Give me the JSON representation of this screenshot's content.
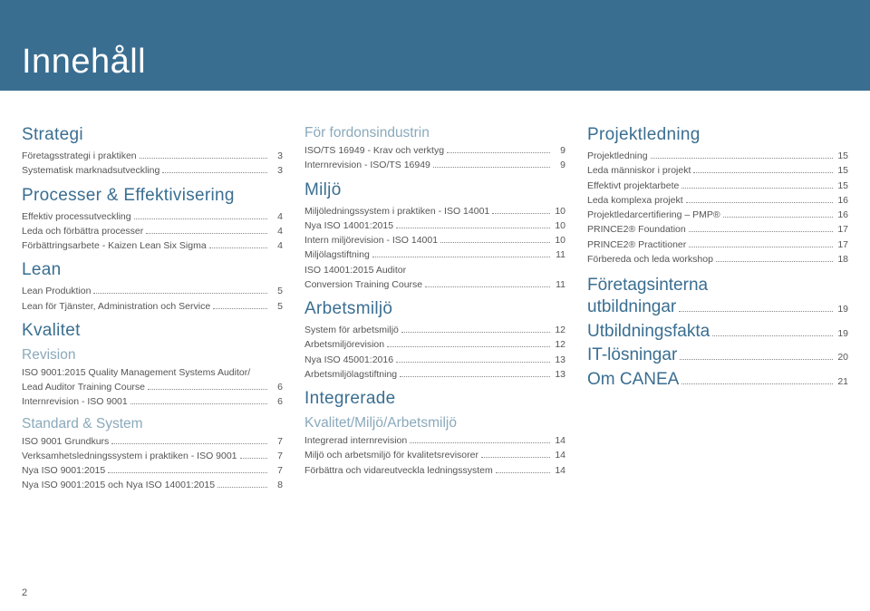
{
  "colors": {
    "band": "#3a6e91",
    "heading": "#3a6e91",
    "subheading": "#8aa9bb",
    "text": "#555555",
    "dots": "#888888",
    "background": "#ffffff"
  },
  "typography": {
    "title_fontsize": 38,
    "section_fontsize": 19,
    "sub_fontsize": 15.5,
    "body_fontsize": 10.5,
    "font_family": "Arial"
  },
  "page_title": "Innehåll",
  "page_number": "2",
  "columns": [
    {
      "blocks": [
        {
          "type": "section",
          "text": "Strategi",
          "first": true
        },
        {
          "type": "item",
          "label": "Företagsstrategi i praktiken",
          "page": "3"
        },
        {
          "type": "item",
          "label": "Systematisk marknadsutveckling",
          "page": "3"
        },
        {
          "type": "section",
          "text": "Processer & Effektivisering"
        },
        {
          "type": "item",
          "label": "Effektiv processutveckling",
          "page": "4"
        },
        {
          "type": "item",
          "label": "Leda och förbättra processer",
          "page": "4"
        },
        {
          "type": "item",
          "label": "Förbättringsarbete - Kaizen Lean Six Sigma",
          "page": "4"
        },
        {
          "type": "section",
          "text": "Lean"
        },
        {
          "type": "item",
          "label": "Lean Produktion",
          "page": "5"
        },
        {
          "type": "item",
          "label": "Lean för Tjänster, Administration och Service",
          "page": "5"
        },
        {
          "type": "section",
          "text": "Kvalitet"
        },
        {
          "type": "sub",
          "text": "Revision"
        },
        {
          "type": "textline",
          "label": "ISO 9001:2015 Quality Management Systems Auditor/"
        },
        {
          "type": "item",
          "label": "Lead Auditor Training Course",
          "page": "6"
        },
        {
          "type": "item",
          "label": "Internrevision - ISO 9001",
          "page": "6"
        },
        {
          "type": "sub",
          "text": "Standard & System"
        },
        {
          "type": "item",
          "label": "ISO 9001 Grundkurs",
          "page": "7"
        },
        {
          "type": "item",
          "label": "Verksamhetsledningssystem i praktiken - ISO 9001",
          "page": "7"
        },
        {
          "type": "item",
          "label": "Nya ISO 9001:2015",
          "page": "7"
        },
        {
          "type": "item",
          "label": "Nya ISO 9001:2015 och Nya ISO 14001:2015",
          "page": "8"
        }
      ]
    },
    {
      "blocks": [
        {
          "type": "sub",
          "text": "För fordonsindustrin",
          "first": true
        },
        {
          "type": "item",
          "label": "ISO/TS 16949 - Krav och verktyg",
          "page": "9"
        },
        {
          "type": "item",
          "label": "Internrevision - ISO/TS 16949",
          "page": "9"
        },
        {
          "type": "section",
          "text": "Miljö"
        },
        {
          "type": "item",
          "label": "Miljöledningssystem i praktiken - ISO 14001",
          "page": "10"
        },
        {
          "type": "item",
          "label": "Nya ISO 14001:2015",
          "page": "10"
        },
        {
          "type": "item",
          "label": "Intern miljörevision - ISO 14001",
          "page": "10"
        },
        {
          "type": "item",
          "label": "Miljölagstiftning",
          "page": "11"
        },
        {
          "type": "textline",
          "label": "ISO 14001:2015 Auditor"
        },
        {
          "type": "item",
          "label": "Conversion Training Course",
          "page": "11"
        },
        {
          "type": "section",
          "text": "Arbetsmiljö"
        },
        {
          "type": "item",
          "label": "System för arbetsmiljö",
          "page": "12"
        },
        {
          "type": "item",
          "label": "Arbetsmiljörevision",
          "page": "12"
        },
        {
          "type": "item",
          "label": "Nya ISO 45001:2016",
          "page": "13"
        },
        {
          "type": "item",
          "label": "Arbetsmiljölagstiftning",
          "page": "13"
        },
        {
          "type": "section",
          "text": "Integrerade"
        },
        {
          "type": "sub",
          "text": "Kvalitet/Miljö/Arbetsmiljö"
        },
        {
          "type": "item",
          "label": "Integrerad internrevision",
          "page": "14"
        },
        {
          "type": "item",
          "label": "Miljö och arbetsmiljö för kvalitetsrevisorer",
          "page": "14"
        },
        {
          "type": "item",
          "label": "Förbättra och vidareutveckla ledningssystem",
          "page": "14"
        }
      ]
    },
    {
      "blocks": [
        {
          "type": "section",
          "text": "Projektledning",
          "first": true
        },
        {
          "type": "item",
          "label": "Projektledning",
          "page": "15"
        },
        {
          "type": "item",
          "label": "Leda människor i projekt",
          "page": "15"
        },
        {
          "type": "item",
          "label": "Effektivt projektarbete",
          "page": "15"
        },
        {
          "type": "item",
          "label": "Leda komplexa projekt",
          "page": "16"
        },
        {
          "type": "item",
          "label": "Projektledarcertifiering – PMP®",
          "page": "16"
        },
        {
          "type": "item",
          "label": "PRINCE2® Foundation",
          "page": "17"
        },
        {
          "type": "item",
          "label": "PRINCE2® Practitioner",
          "page": "17"
        },
        {
          "type": "item",
          "label": "Förbereda och leda workshop",
          "page": "18"
        },
        {
          "type": "gap"
        },
        {
          "type": "headingrow",
          "text_a": "Företagsinterna"
        },
        {
          "type": "headingitem",
          "text": "utbildningar",
          "page": "19"
        },
        {
          "type": "headingitem",
          "text": "Utbildningsfakta",
          "page": "19"
        },
        {
          "type": "headingitem",
          "text": "IT-lösningar",
          "page": "20"
        },
        {
          "type": "headingitem",
          "text": "Om CANEA",
          "page": "21"
        }
      ]
    }
  ]
}
